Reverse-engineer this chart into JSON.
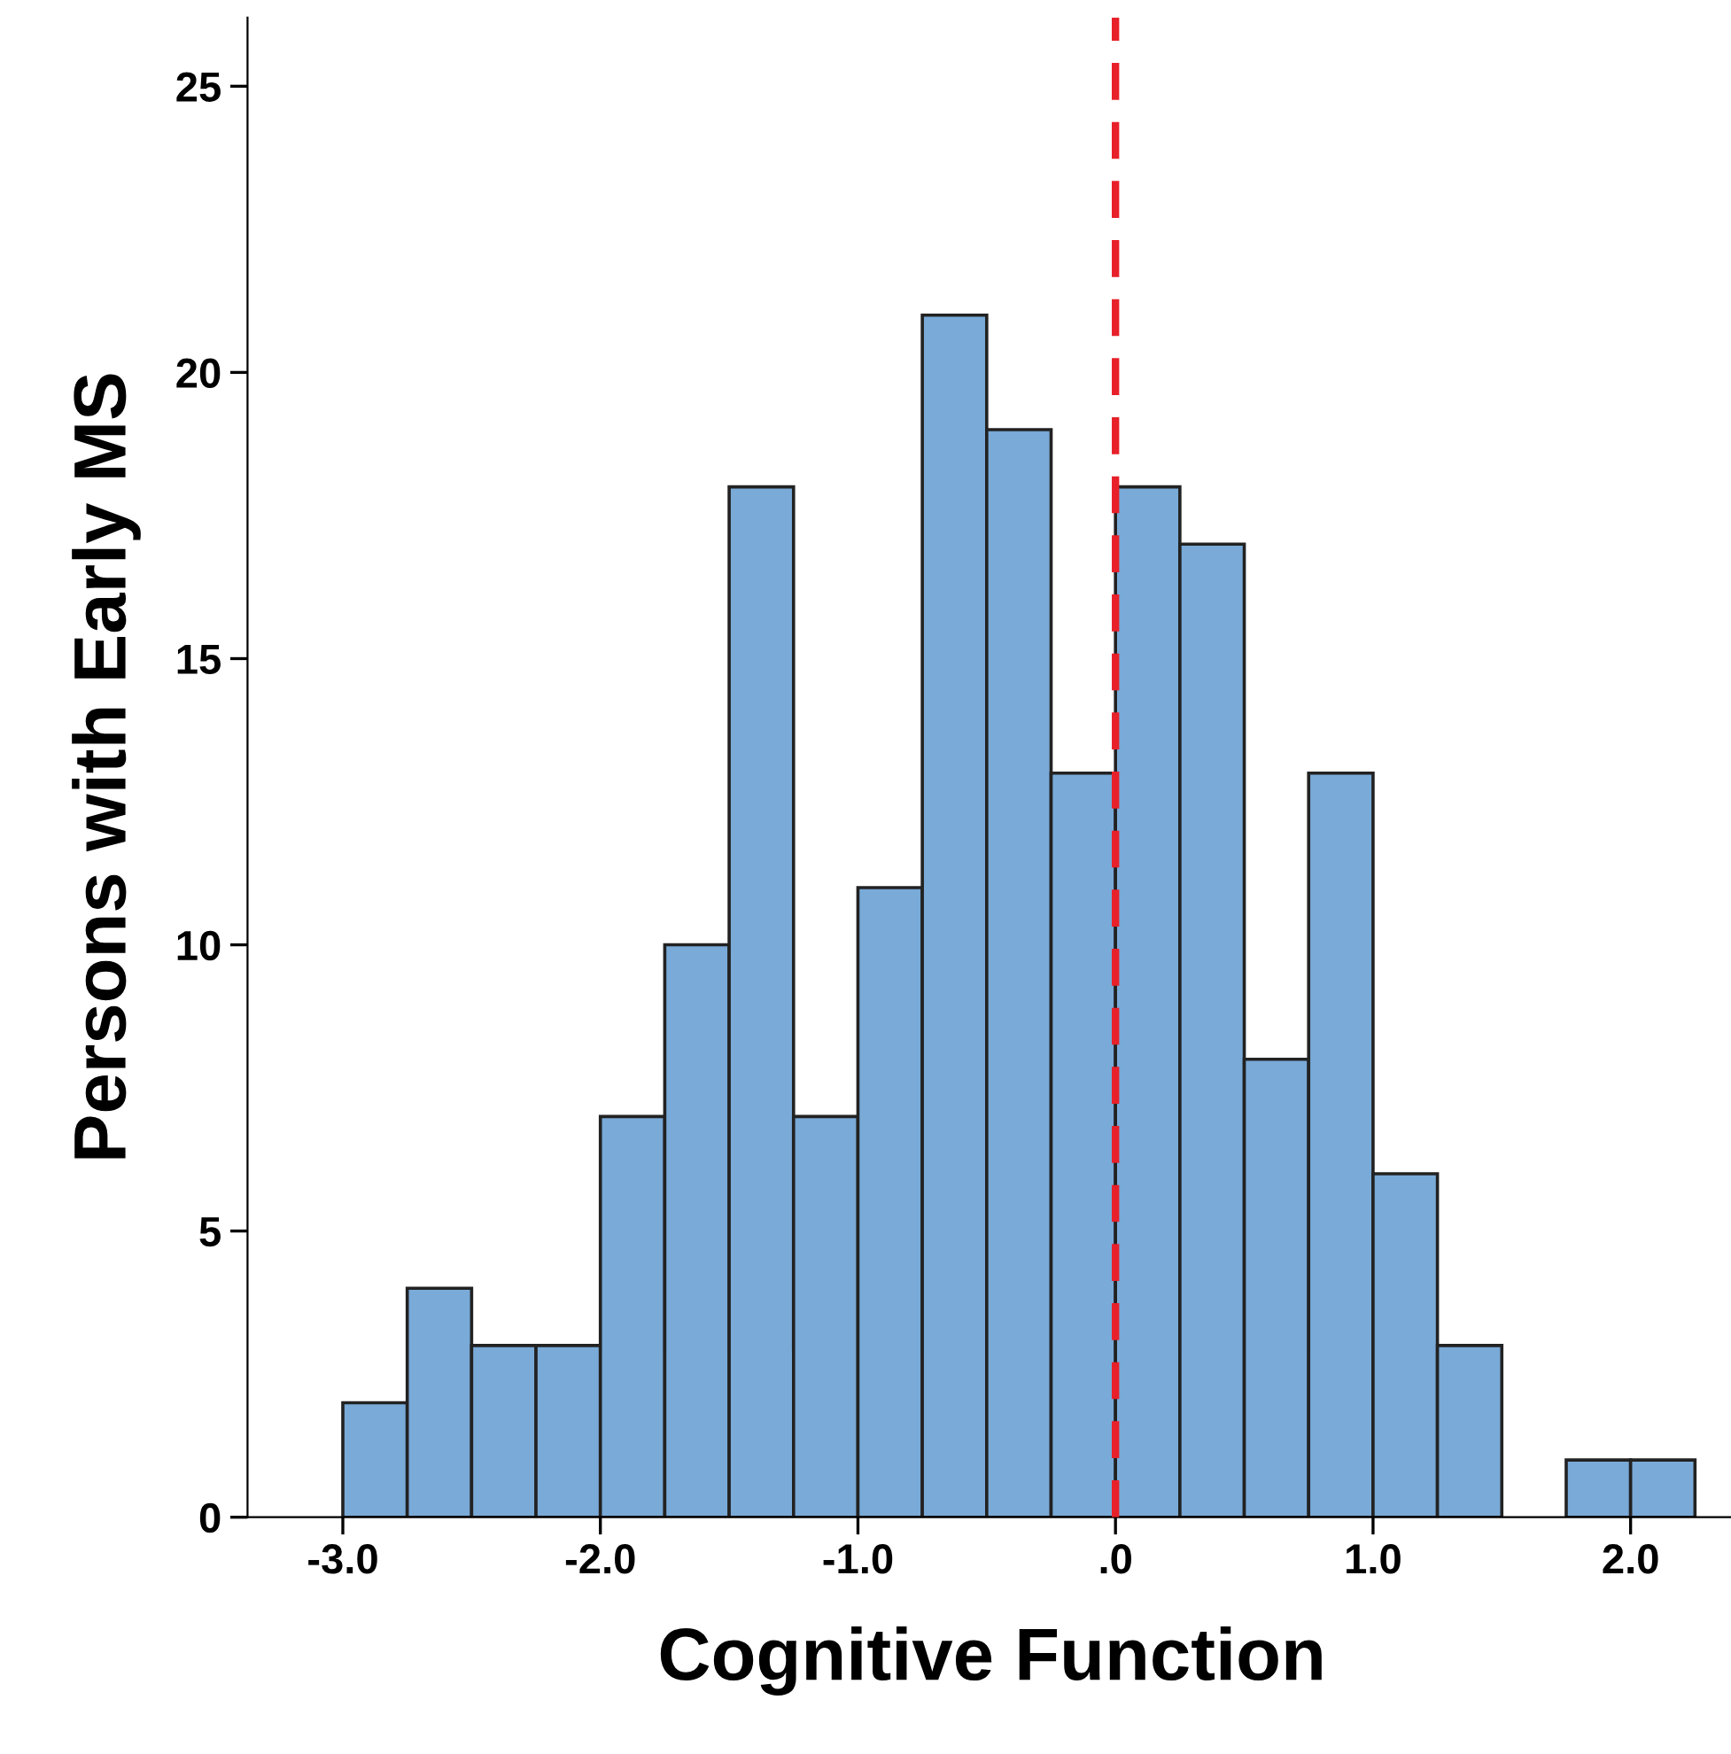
{
  "chart_data": {
    "type": "histogram",
    "xlabel": "Cognitive Function",
    "ylabel": "Persons with Early MS",
    "bins": [
      -3.0,
      -2.75,
      -2.5,
      -2.25,
      -2.0,
      -1.75,
      -1.5,
      -1.25,
      -1.0,
      -0.75,
      -0.5,
      -0.25,
      0.0,
      0.25,
      0.5,
      0.75,
      1.0,
      1.25,
      1.5,
      1.75,
      2.0,
      2.25
    ],
    "values": [
      2,
      4,
      3,
      3,
      7,
      10,
      18,
      7,
      11,
      21,
      19,
      13,
      18,
      17,
      8,
      13,
      6,
      3,
      0,
      1,
      1
    ],
    "color": "#79aad8",
    "xlim": [
      -3.37,
      2.41
    ],
    "ylim": [
      0,
      26.2
    ],
    "xticks": [
      {
        "value": -3.0,
        "label": "-3.0"
      },
      {
        "value": -2.0,
        "label": "-2.0"
      },
      {
        "value": -1.0,
        "label": "-1.0"
      },
      {
        "value": 0.0,
        "label": ".0"
      },
      {
        "value": 1.0,
        "label": "1.0"
      },
      {
        "value": 2.0,
        "label": "2.0"
      }
    ],
    "yticks": [
      0,
      5,
      10,
      15,
      20,
      25
    ],
    "ref_lines": [
      {
        "axis": "x",
        "value": 0.0,
        "color": "#e8202a",
        "line_style": "dashed"
      }
    ],
    "grid": false,
    "legend": false
  }
}
